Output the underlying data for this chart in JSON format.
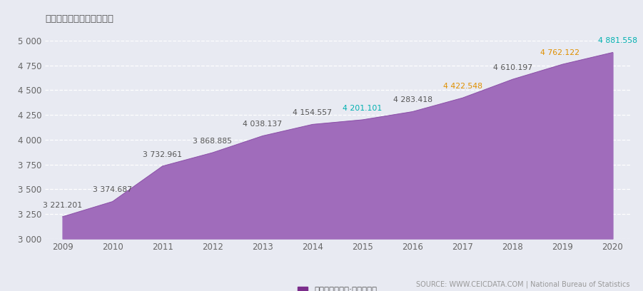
{
  "years": [
    2009,
    2010,
    2011,
    2012,
    2013,
    2014,
    2015,
    2016,
    2017,
    2018,
    2019,
    2020
  ],
  "values": [
    3221.201,
    3374.687,
    3732.961,
    3868.885,
    4038.137,
    4154.557,
    4201.101,
    4283.418,
    4422.548,
    4610.197,
    4762.122,
    4881.558
  ],
  "labels": [
    "3 221.201",
    "3 374.687",
    "3 732.961",
    "3 868.885",
    "4 038.137",
    "4 154.557",
    "4 201.101",
    "4 283.418",
    "4 422.548",
    "4 610.197",
    "4 762.122",
    "4 881.558"
  ],
  "fill_color": "#a06cbb",
  "line_color": "#8e44ad",
  "background_color": "#e8eaf2",
  "ylim": [
    3000,
    5000
  ],
  "yticks": [
    3000,
    3250,
    3500,
    3750,
    4000,
    4250,
    4500,
    4750,
    5000
  ],
  "title": "所选日期没有可用的数据。",
  "legend_label": "综合能源平衡表:终端消费量",
  "source_text": "SOURCE: WWW.CEICDATA.COM | National Bureau of Statistics",
  "label_colors": [
    "#555555",
    "#555555",
    "#555555",
    "#555555",
    "#555555",
    "#555555",
    "#00b0b0",
    "#555555",
    "#e09000",
    "#555555",
    "#e09000",
    "#00b0b0"
  ],
  "label_offsets_x": [
    0,
    0,
    0,
    0,
    0,
    0,
    0,
    0,
    0,
    0,
    -3,
    5
  ],
  "label_offsets_y": [
    8,
    8,
    8,
    8,
    8,
    8,
    8,
    8,
    8,
    8,
    8,
    8
  ]
}
